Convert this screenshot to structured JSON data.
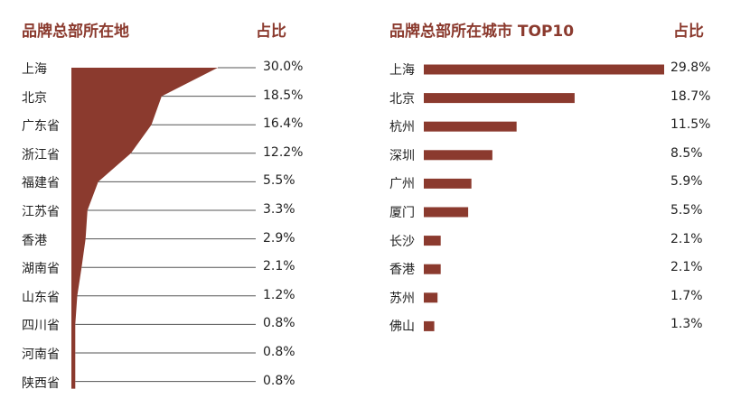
{
  "accent_color": "#8b3a2e",
  "line_color": "#555555",
  "chart_data": [
    {
      "type": "area",
      "title": "品牌总部所在地",
      "value_header": "占比",
      "categories": [
        "上海",
        "北京",
        "广东省",
        "浙江省",
        "福建省",
        "江苏省",
        "香港",
        "湖南省",
        "山东省",
        "四川省",
        "河南省",
        "陕西省"
      ],
      "values": [
        30.0,
        18.5,
        16.4,
        12.2,
        5.5,
        3.3,
        2.9,
        2.1,
        1.2,
        0.8,
        0.8,
        0.8
      ],
      "value_labels": [
        "30.0%",
        "18.5%",
        "16.4%",
        "12.2%",
        "5.5%",
        "3.3%",
        "2.9%",
        "2.1%",
        "1.2%",
        "0.8%",
        "0.8%",
        "0.8%"
      ],
      "xlim": [
        0,
        30
      ]
    },
    {
      "type": "bar",
      "title": "品牌总部所在城市 TOP10",
      "value_header": "占比",
      "categories": [
        "上海",
        "北京",
        "杭州",
        "深圳",
        "广州",
        "厦门",
        "长沙",
        "香港",
        "苏州",
        "佛山"
      ],
      "values": [
        29.8,
        18.7,
        11.5,
        8.5,
        5.9,
        5.5,
        2.1,
        2.1,
        1.7,
        1.3
      ],
      "value_labels": [
        "29.8%",
        "18.7%",
        "11.5%",
        "8.5%",
        "5.9%",
        "5.5%",
        "2.1%",
        "2.1%",
        "1.7%",
        "1.3%"
      ],
      "xlim": [
        0,
        29.8
      ]
    }
  ]
}
